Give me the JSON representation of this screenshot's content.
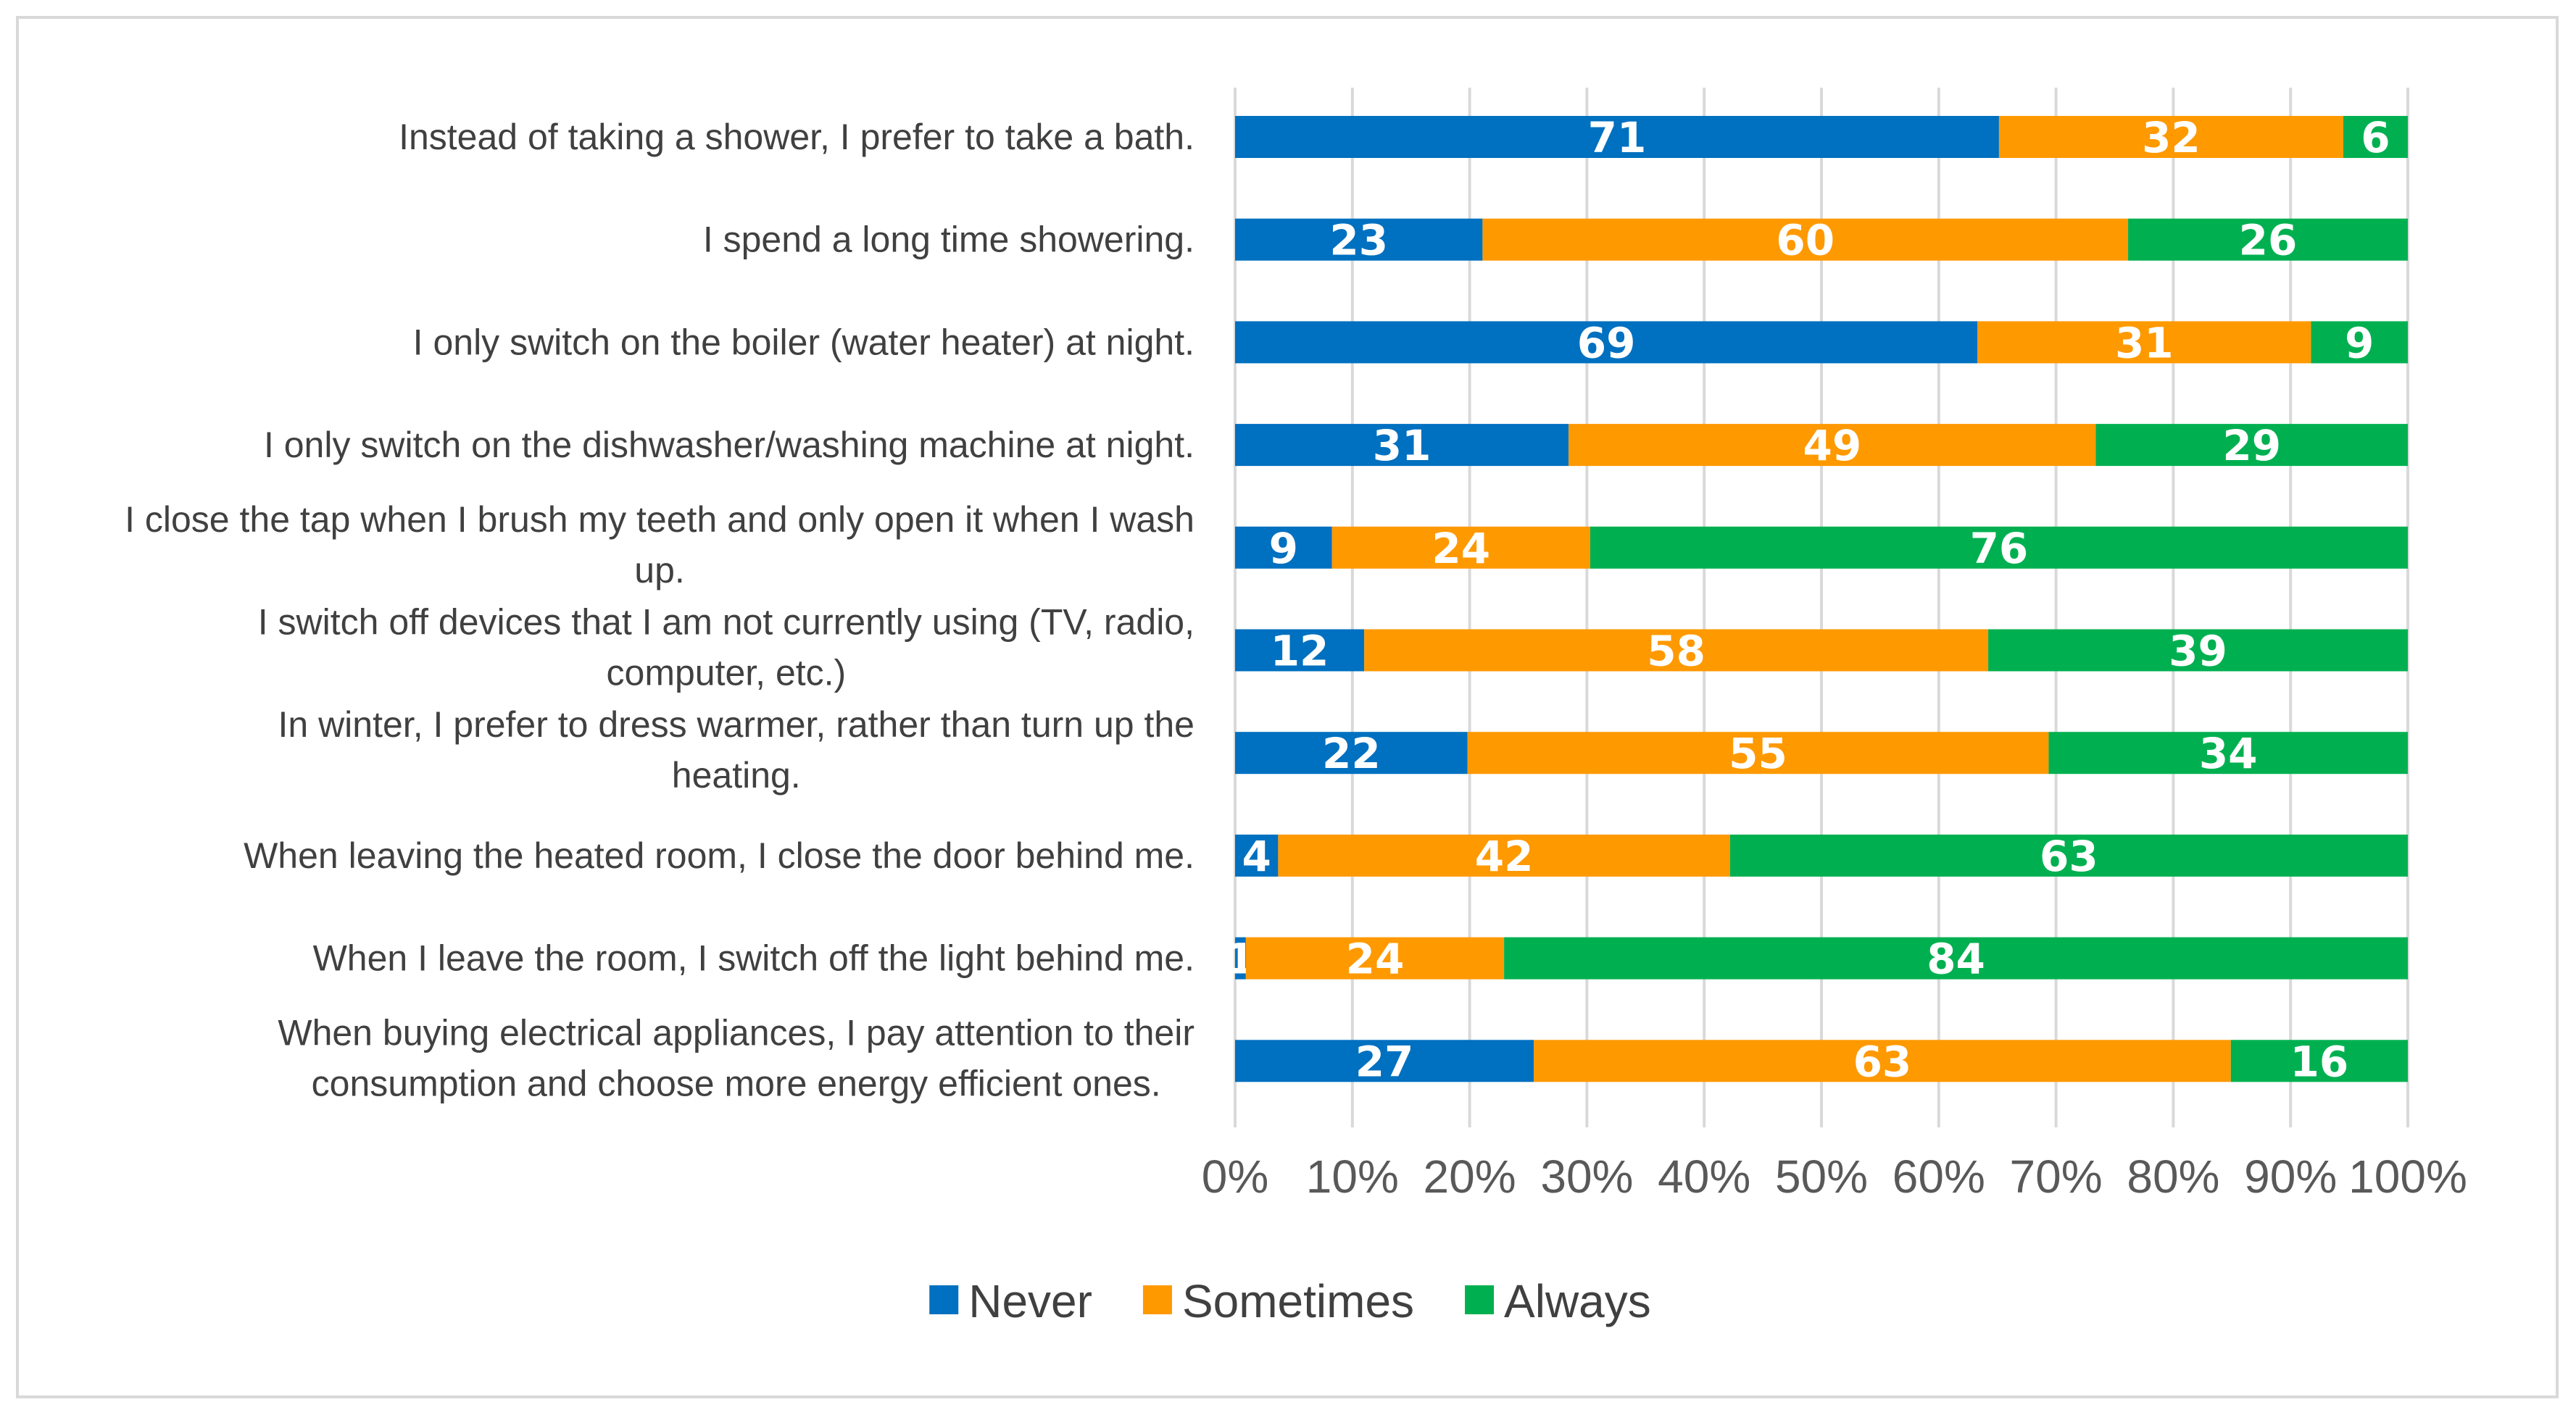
{
  "chart_data": {
    "type": "bar",
    "orientation": "horizontal",
    "stacking": "percent",
    "categories": [
      "Instead of taking a shower, I prefer to take a bath.",
      "I spend a long time showering.",
      "I only switch on the boiler (water heater) at night.",
      "I only switch on the dishwasher/washing machine at night.",
      "I close the tap when I brush my teeth and only open it when I wash up.",
      "I switch off devices that I am not currently using (TV, radio, computer, etc.)",
      "In winter, I prefer to dress warmer, rather than turn up the heating.",
      "When leaving the heated room, I close the door behind me.",
      "When I leave the room, I switch off the light behind me.",
      "When buying electrical appliances, I pay attention to their consumption and choose more energy efficient ones."
    ],
    "category_lines": [
      [
        "Instead of taking a shower, I prefer to take a bath."
      ],
      [
        "I spend a long time showering."
      ],
      [
        "I only switch on the boiler (water heater) at night."
      ],
      [
        "I only switch on the dishwasher/washing machine at night."
      ],
      [
        "I close the tap when I brush my teeth and only open it when I wash",
        "up."
      ],
      [
        "I switch off devices that I am not currently using (TV, radio,",
        "computer, etc.)"
      ],
      [
        "In winter, I prefer to dress warmer, rather than turn up the",
        "heating."
      ],
      [
        "When leaving the heated room, I close the door behind me."
      ],
      [
        "When I leave the room, I switch off the light behind me."
      ],
      [
        "When buying electrical appliances, I pay attention to their",
        "consumption and choose more energy efficient ones."
      ]
    ],
    "series": [
      {
        "name": "Never",
        "color": "#0070c0",
        "values": [
          71,
          23,
          69,
          31,
          9,
          12,
          22,
          4,
          1,
          27
        ]
      },
      {
        "name": "Sometimes",
        "color": "#ff9900",
        "values": [
          32,
          60,
          31,
          49,
          24,
          58,
          55,
          42,
          24,
          63
        ]
      },
      {
        "name": "Always",
        "color": "#00b050",
        "values": [
          6,
          26,
          9,
          29,
          76,
          39,
          34,
          63,
          84,
          16
        ]
      }
    ],
    "xaxis_ticks": [
      "0%",
      "10%",
      "20%",
      "30%",
      "40%",
      "50%",
      "60%",
      "70%",
      "80%",
      "90%",
      "100%"
    ],
    "xlim": [
      0,
      100
    ],
    "grid": true,
    "legend_position": "bottom",
    "title": "",
    "xlabel": "",
    "ylabel": ""
  }
}
